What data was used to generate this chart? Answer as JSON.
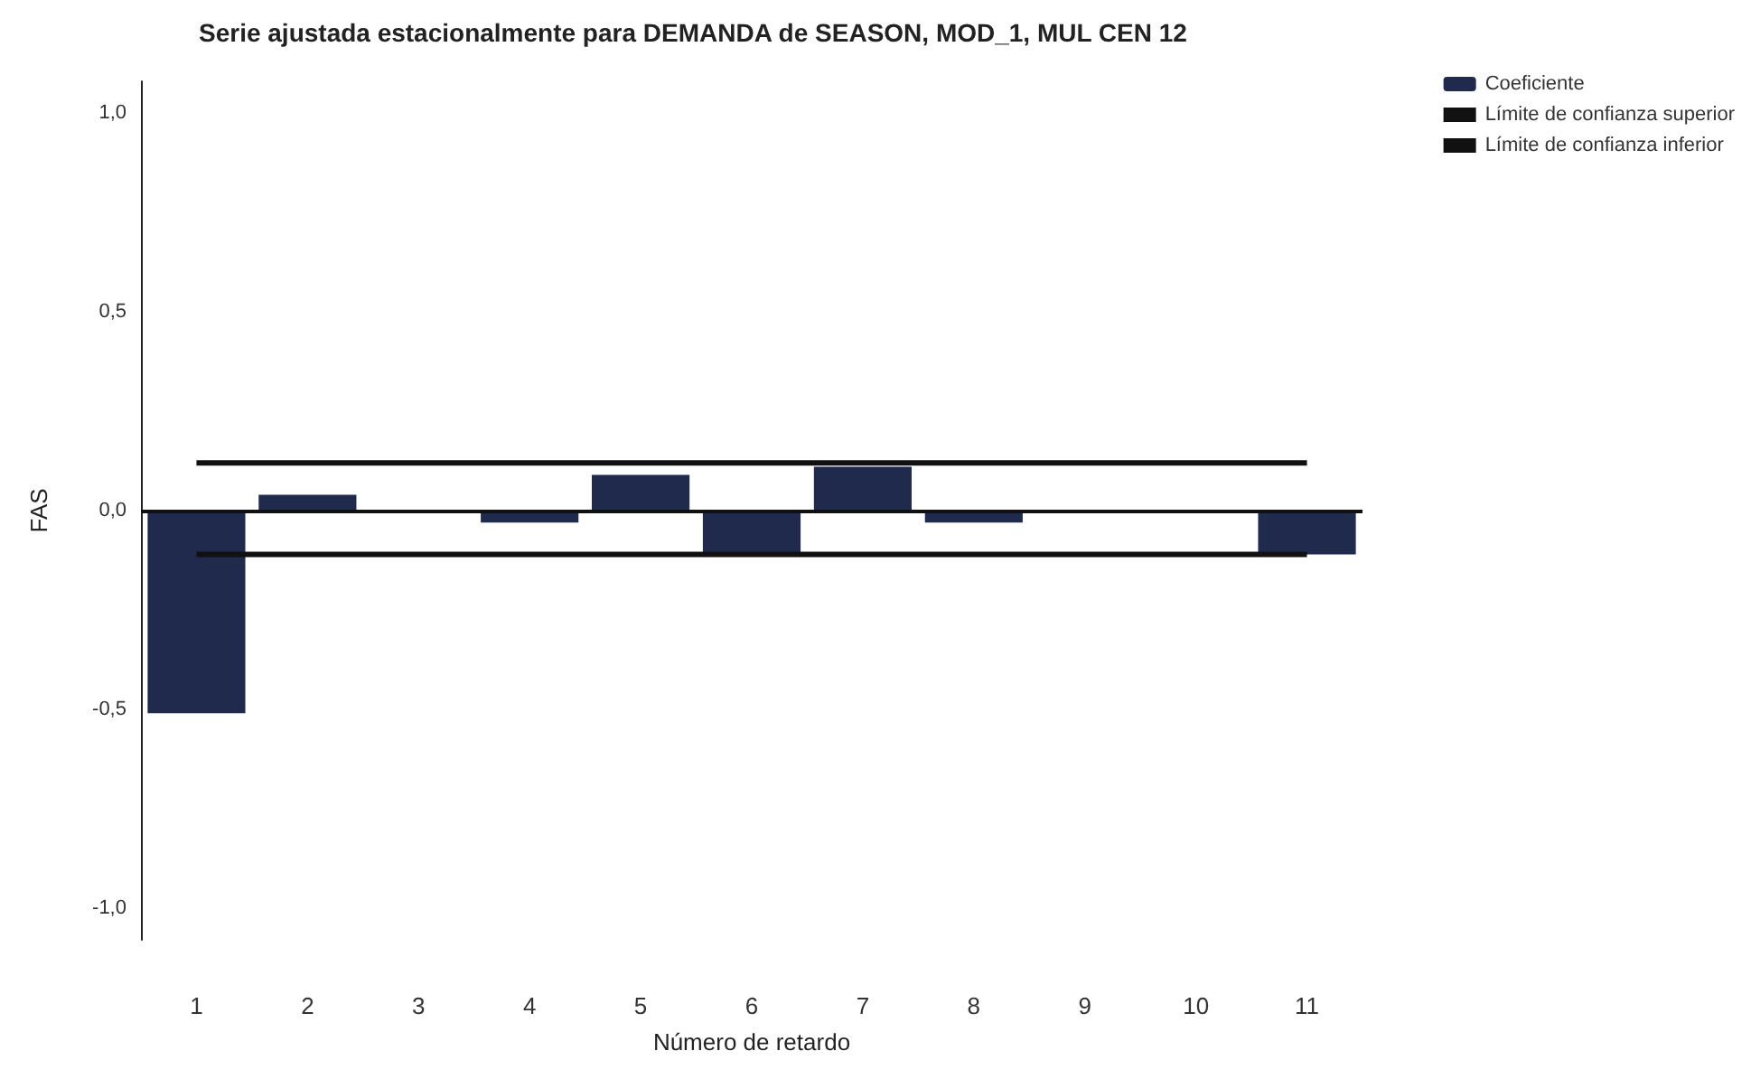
{
  "chart_data": {
    "type": "bar",
    "title": "Serie ajustada estacionalmente para DEMANDA de SEASON, MOD_1, MUL CEN 12",
    "xlabel": "Número de retardo",
    "ylabel": "FAS",
    "categories": [
      "1",
      "2",
      "3",
      "4",
      "5",
      "6",
      "7",
      "8",
      "9",
      "10",
      "11"
    ],
    "series": [
      {
        "name": "Coeficiente",
        "color": "#1f2a4d",
        "values": [
          -0.51,
          0.04,
          0,
          -0.03,
          0.09,
          -0.11,
          0.11,
          -0.03,
          0,
          0,
          -0.11
        ]
      },
      {
        "name": "Límite de confianza superior",
        "type": "line",
        "color": "#111111",
        "values": [
          0.12,
          0.12,
          0.12,
          0.12,
          0.12,
          0.12,
          0.12,
          0.12,
          0.12,
          0.12,
          0.12
        ]
      },
      {
        "name": "Límite de confianza inferior",
        "type": "line",
        "color": "#111111",
        "values": [
          -0.11,
          -0.11,
          -0.11,
          -0.11,
          -0.11,
          -0.11,
          -0.11,
          -0.11,
          -0.11,
          -0.11,
          -0.11
        ]
      }
    ],
    "ylim": [
      -1.08,
      1.08
    ],
    "yticks": [
      {
        "value": -1,
        "label": "-1,0"
      },
      {
        "value": -0.5,
        "label": "-0,5"
      },
      {
        "value": 0,
        "label": "0,0"
      },
      {
        "value": 0.5,
        "label": "0,5"
      },
      {
        "value": 1,
        "label": "1,0"
      }
    ],
    "ref_lines": [
      {
        "axis": "y",
        "value": 0,
        "color": "#111111",
        "line_style": "solid"
      }
    ],
    "grid": false,
    "legend": "top right",
    "marker": "none",
    "line_style": "solid"
  }
}
